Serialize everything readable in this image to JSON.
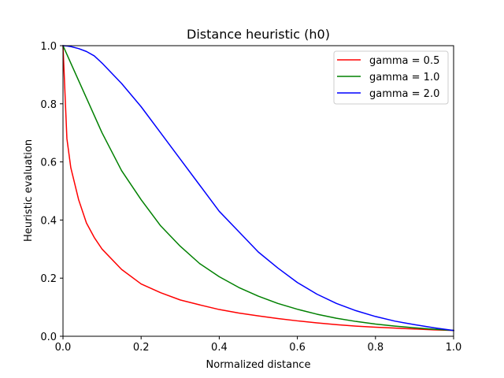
{
  "chart_data": {
    "type": "line",
    "title": "Distance heuristic (h0)",
    "xlabel": "Normalized distance",
    "ylabel": "Heuristic evaluation",
    "xlim": [
      0,
      1
    ],
    "ylim": [
      0,
      1
    ],
    "xticks": [
      "0.0",
      "0.2",
      "0.4",
      "0.6",
      "0.8",
      "1.0"
    ],
    "yticks": [
      "0.0",
      "0.2",
      "0.4",
      "0.6",
      "0.8",
      "1.0"
    ],
    "grid": false,
    "legend_position": "top-right",
    "x": [
      0,
      0.01,
      0.02,
      0.04,
      0.06,
      0.08,
      0.1,
      0.15,
      0.2,
      0.25,
      0.3,
      0.35,
      0.4,
      0.45,
      0.5,
      0.55,
      0.6,
      0.65,
      0.7,
      0.75,
      0.8,
      0.85,
      0.9,
      0.95,
      1.0
    ],
    "series": [
      {
        "name": "gamma = 0.5",
        "color": "#ff0000",
        "values": [
          1.0,
          0.68,
          0.58,
          0.47,
          0.39,
          0.34,
          0.3,
          0.23,
          0.18,
          0.15,
          0.125,
          0.108,
          0.092,
          0.08,
          0.07,
          0.061,
          0.053,
          0.046,
          0.04,
          0.035,
          0.031,
          0.028,
          0.025,
          0.022,
          0.02
        ]
      },
      {
        "name": "gamma = 1.0",
        "color": "#008000",
        "values": [
          1.0,
          0.97,
          0.94,
          0.88,
          0.82,
          0.76,
          0.7,
          0.57,
          0.47,
          0.38,
          0.31,
          0.25,
          0.205,
          0.168,
          0.138,
          0.113,
          0.093,
          0.076,
          0.062,
          0.051,
          0.042,
          0.035,
          0.029,
          0.024,
          0.02
        ]
      },
      {
        "name": "gamma = 2.0",
        "color": "#0000ff",
        "values": [
          1.0,
          0.999,
          0.997,
          0.99,
          0.98,
          0.965,
          0.94,
          0.87,
          0.79,
          0.7,
          0.61,
          0.52,
          0.43,
          0.36,
          0.29,
          0.235,
          0.185,
          0.145,
          0.113,
          0.088,
          0.068,
          0.052,
          0.04,
          0.029,
          0.02
        ]
      }
    ]
  }
}
